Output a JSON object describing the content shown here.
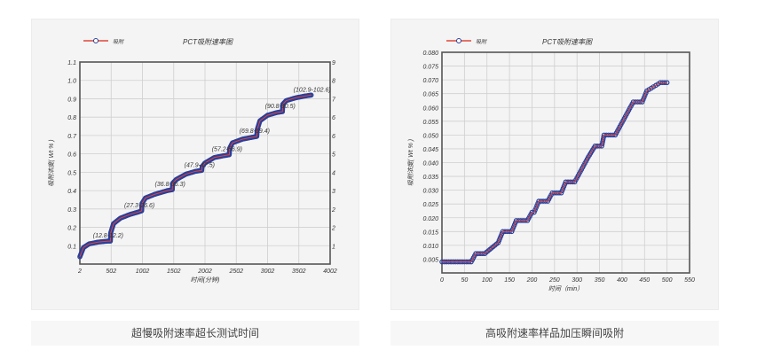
{
  "captions": {
    "left": "超慢吸附速率超长测试时间",
    "right": "高吸附速率样品加压瞬间吸附"
  },
  "colors": {
    "panel_bg": "#f4f4f4",
    "line": "#e0463a",
    "marker": "#2a3f9a",
    "grid": "#cfcfcf",
    "axis": "#555555"
  },
  "chart_data": [
    {
      "type": "line",
      "title": "PCT吸附速率图",
      "legend": [
        "吸附"
      ],
      "legend_position": "top-left",
      "xlabel": "时间(分钟)",
      "ylabel": "吸附浓度( Wt % )",
      "xlim": [
        2,
        4002
      ],
      "ylim": [
        0,
        1.1
      ],
      "x_ticks": [
        "2",
        "502",
        "1002",
        "1502",
        "2002",
        "2502",
        "3002",
        "3502",
        "4002"
      ],
      "y_ticks": [
        "0.1",
        "0.2",
        "0.3",
        "0.4",
        "0.5",
        "0.6",
        "0.7",
        "0.8",
        "0.9",
        "1.0",
        "1.1"
      ],
      "y2_ticks": [
        "1",
        "2",
        "2",
        "3",
        "4",
        "5",
        "6",
        "6",
        "7",
        "8",
        "9"
      ],
      "grid": true,
      "series": [
        {
          "name": "吸附",
          "x": [
            2,
            60,
            150,
            300,
            450,
            490,
            495,
            540,
            650,
            800,
            950,
            990,
            995,
            1050,
            1200,
            1400,
            1480,
            1485,
            1540,
            1700,
            1850,
            1950,
            1955,
            2000,
            2150,
            2300,
            2390,
            2395,
            2440,
            2600,
            2750,
            2830,
            2835,
            2880,
            3000,
            3150,
            3240,
            3245,
            3300,
            3450,
            3600,
            3700
          ],
          "values": [
            0.04,
            0.09,
            0.11,
            0.12,
            0.125,
            0.125,
            0.17,
            0.22,
            0.25,
            0.27,
            0.285,
            0.29,
            0.33,
            0.36,
            0.38,
            0.4,
            0.405,
            0.44,
            0.46,
            0.49,
            0.505,
            0.51,
            0.53,
            0.55,
            0.58,
            0.59,
            0.595,
            0.63,
            0.66,
            0.68,
            0.69,
            0.695,
            0.73,
            0.78,
            0.81,
            0.825,
            0.83,
            0.87,
            0.89,
            0.905,
            0.915,
            0.92
          ]
        }
      ],
      "annotations": [
        {
          "x": 495,
          "y": 0.125,
          "text": "(12.8-12.2)"
        },
        {
          "x": 995,
          "y": 0.29,
          "text": "(27.3-26.6)"
        },
        {
          "x": 1485,
          "y": 0.405,
          "text": "(36.8-36.3)"
        },
        {
          "x": 1955,
          "y": 0.51,
          "text": "(47.9-47.5)"
        },
        {
          "x": 2395,
          "y": 0.595,
          "text": "(57.2-56.9)"
        },
        {
          "x": 2835,
          "y": 0.695,
          "text": "(69.8-69.4)"
        },
        {
          "x": 3245,
          "y": 0.83,
          "text": "(90.8-90.5)"
        },
        {
          "x": 3700,
          "y": 0.92,
          "text": "(102.9-102.6)"
        }
      ]
    },
    {
      "type": "line",
      "title": "PCT吸附速率图",
      "legend": [
        "吸附"
      ],
      "legend_position": "top-left",
      "xlabel": "时间（min）",
      "ylabel": "吸附浓度( Wt % )",
      "xlim": [
        0,
        550
      ],
      "ylim": [
        0,
        0.08
      ],
      "x_ticks": [
        "0",
        "50",
        "100",
        "150",
        "200",
        "250",
        "300",
        "350",
        "400",
        "450",
        "500",
        "550"
      ],
      "y_ticks": [
        "0.005",
        "0.010",
        "0.015",
        "0.020",
        "0.025",
        "0.030",
        "0.035",
        "0.040",
        "0.045",
        "0.050",
        "0.055",
        "0.060",
        "0.065",
        "0.070",
        "0.075",
        "0.080"
      ],
      "grid": true,
      "series": [
        {
          "name": "吸附",
          "x": [
            0,
            30,
            35,
            65,
            75,
            95,
            125,
            135,
            155,
            165,
            190,
            200,
            205,
            215,
            235,
            245,
            265,
            275,
            295,
            305,
            315,
            325,
            340,
            355,
            360,
            375,
            385,
            395,
            405,
            415,
            425,
            445,
            455,
            465,
            475,
            485,
            495,
            500
          ],
          "values": [
            0.004,
            0.004,
            0.004,
            0.004,
            0.007,
            0.007,
            0.011,
            0.015,
            0.015,
            0.019,
            0.019,
            0.022,
            0.022,
            0.026,
            0.026,
            0.029,
            0.029,
            0.033,
            0.033,
            0.036,
            0.039,
            0.042,
            0.046,
            0.046,
            0.05,
            0.05,
            0.05,
            0.053,
            0.056,
            0.059,
            0.062,
            0.062,
            0.066,
            0.067,
            0.068,
            0.069,
            0.069,
            0.069
          ]
        }
      ]
    }
  ]
}
